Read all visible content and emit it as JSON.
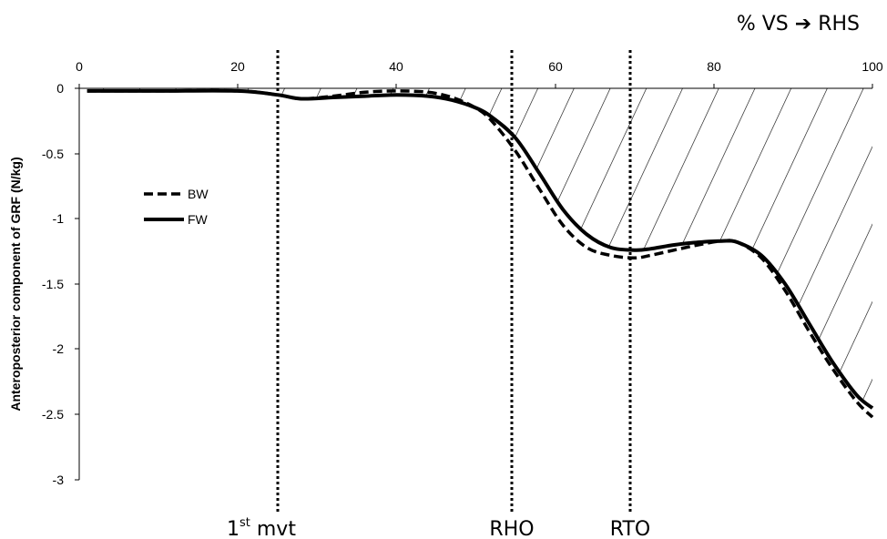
{
  "chart_data": {
    "type": "line",
    "axis_title_top": "% VS ➔ RHS",
    "ylabel": "Anteroposterior component of GRF (N/kg)",
    "xlim": [
      0,
      100
    ],
    "ylim": [
      -3,
      0
    ],
    "x_ticks": [
      "0",
      "20",
      "40",
      "60",
      "80",
      "100"
    ],
    "y_ticks": [
      "0",
      "-0.5",
      "-1",
      "-1.5",
      "-2",
      "-2.5",
      "-3"
    ],
    "grid": false,
    "legend_position": "left",
    "markers": [
      {
        "label_main": "1",
        "label_sup": "st",
        "label_rest": " mvt",
        "x": 25
      },
      {
        "label_main": "RHO",
        "label_sup": "",
        "label_rest": "",
        "x": 55
      },
      {
        "label_main": "RTO",
        "label_sup": "",
        "label_rest": "",
        "x": 70
      }
    ],
    "hatched_region": "between FW curve and y = 0",
    "series": [
      {
        "name": "BW",
        "style": "dashed",
        "color": "#000000",
        "x": [
          1,
          10,
          20,
          25,
          28,
          32,
          36,
          40,
          44,
          47,
          50,
          52,
          55,
          58,
          61,
          64,
          67,
          70,
          72,
          75,
          78,
          81,
          83,
          86,
          89,
          92,
          95,
          98,
          100
        ],
        "y": [
          -0.02,
          -0.02,
          -0.02,
          -0.05,
          -0.08,
          -0.06,
          -0.03,
          -0.02,
          -0.03,
          -0.07,
          -0.15,
          -0.25,
          -0.48,
          -0.77,
          -1.05,
          -1.22,
          -1.28,
          -1.3,
          -1.28,
          -1.24,
          -1.2,
          -1.17,
          -1.18,
          -1.3,
          -1.55,
          -1.86,
          -2.15,
          -2.4,
          -2.52
        ]
      },
      {
        "name": "FW",
        "style": "solid",
        "color": "#000000",
        "x": [
          1,
          10,
          20,
          25,
          28,
          32,
          36,
          40,
          44,
          47,
          50,
          52,
          55,
          58,
          61,
          64,
          67,
          70,
          72,
          75,
          78,
          81,
          83,
          86,
          89,
          92,
          95,
          98,
          100
        ],
        "y": [
          -0.02,
          -0.02,
          -0.02,
          -0.05,
          -0.08,
          -0.07,
          -0.06,
          -0.05,
          -0.06,
          -0.09,
          -0.15,
          -0.22,
          -0.38,
          -0.65,
          -0.93,
          -1.12,
          -1.22,
          -1.24,
          -1.23,
          -1.2,
          -1.18,
          -1.17,
          -1.18,
          -1.28,
          -1.5,
          -1.8,
          -2.1,
          -2.35,
          -2.45
        ]
      }
    ]
  }
}
